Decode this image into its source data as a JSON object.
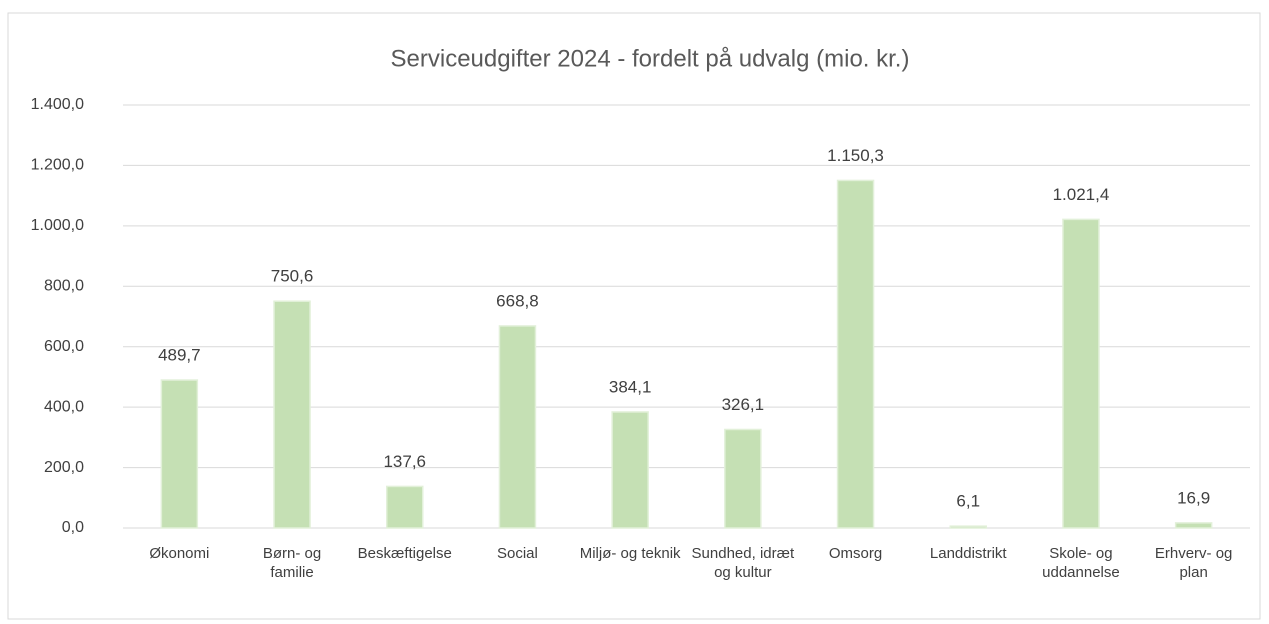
{
  "chart_data": {
    "type": "bar",
    "title": "Serviceudgifter 2024 - fordelt på udvalg (mio. kr.)",
    "categories": [
      "Økonomi",
      "Børn- og familie",
      "Beskæftigelse",
      "Social",
      "Miljø- og teknik",
      "Sundhed, idræt og kultur",
      "Omsorg",
      "Landdistrikt",
      "Skole- og uddannelse",
      "Erhverv- og plan"
    ],
    "values": [
      489.7,
      750.6,
      137.6,
      668.8,
      384.1,
      326.1,
      1150.3,
      6.1,
      1021.4,
      16.9
    ],
    "value_labels": [
      "489,7",
      "750,6",
      "137,6",
      "668,8",
      "384,1",
      "326,1",
      "1.150,3",
      "6,1",
      "1.021,4",
      "16,9"
    ],
    "color": "#c5e0b4",
    "ylim": [
      0,
      1400
    ],
    "yticks": [
      {
        "value": 0,
        "label": "0,0"
      },
      {
        "value": 200,
        "label": "200,0"
      },
      {
        "value": 400,
        "label": "400,0"
      },
      {
        "value": 600,
        "label": "600,0"
      },
      {
        "value": 800,
        "label": "800,0"
      },
      {
        "value": 1000,
        "label": "1.000,0"
      },
      {
        "value": 1200,
        "label": "1.200,0"
      },
      {
        "value": 1400,
        "label": "1.400,0"
      }
    ],
    "grid": true
  }
}
